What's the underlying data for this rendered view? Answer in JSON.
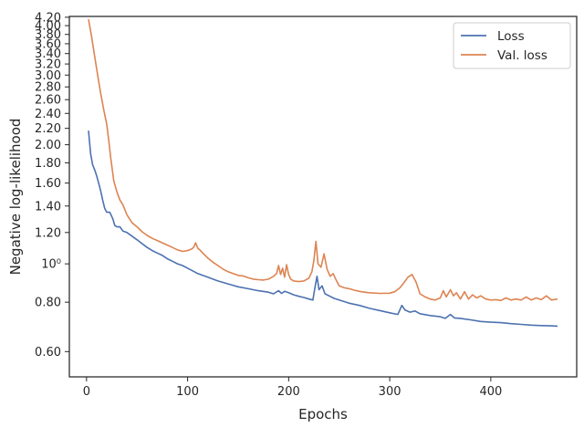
{
  "chart_data": {
    "type": "line",
    "xlabel": "Epochs",
    "ylabel": "Negative log-likelihood",
    "xlim": [
      -17,
      485
    ],
    "ylim": [
      0.518,
      4.22
    ],
    "yscale": "log",
    "grid": false,
    "legend_position": "top-right",
    "x_ticks": [
      {
        "value": 0,
        "label": "0"
      },
      {
        "value": 100,
        "label": "100"
      },
      {
        "value": 200,
        "label": "200"
      },
      {
        "value": 300,
        "label": "300"
      },
      {
        "value": 400,
        "label": "400"
      }
    ],
    "y_ticks": [
      {
        "value": 0.6,
        "label": "0.60"
      },
      {
        "value": 0.8,
        "label": "0.80"
      },
      {
        "value": 1.0,
        "label": "10⁰"
      },
      {
        "value": 1.2,
        "label": "1.20"
      },
      {
        "value": 1.4,
        "label": "1.40"
      },
      {
        "value": 1.6,
        "label": "1.60"
      },
      {
        "value": 1.8,
        "label": "1.80"
      },
      {
        "value": 2.0,
        "label": "2.00"
      },
      {
        "value": 2.2,
        "label": "2.20"
      },
      {
        "value": 2.4,
        "label": "2.40"
      },
      {
        "value": 2.6,
        "label": "2.60"
      },
      {
        "value": 2.8,
        "label": "2.80"
      },
      {
        "value": 3.0,
        "label": "3.00"
      },
      {
        "value": 3.2,
        "label": "3.20"
      },
      {
        "value": 3.4,
        "label": "3.40"
      },
      {
        "value": 3.6,
        "label": "3.60"
      },
      {
        "value": 3.8,
        "label": "3.80"
      },
      {
        "value": 4.0,
        "label": "4.00"
      },
      {
        "value": 4.2,
        "label": "4.20"
      }
    ],
    "series": [
      {
        "name": "Loss",
        "color": "#4c72b0",
        "points": [
          [
            2,
            2.17
          ],
          [
            4,
            1.9
          ],
          [
            6,
            1.78
          ],
          [
            8,
            1.73
          ],
          [
            10,
            1.67
          ],
          [
            12,
            1.6
          ],
          [
            14,
            1.53
          ],
          [
            16,
            1.45
          ],
          [
            18,
            1.38
          ],
          [
            20,
            1.35
          ],
          [
            23,
            1.35
          ],
          [
            26,
            1.3
          ],
          [
            28,
            1.25
          ],
          [
            30,
            1.24
          ],
          [
            33,
            1.24
          ],
          [
            36,
            1.21
          ],
          [
            40,
            1.2
          ],
          [
            45,
            1.175
          ],
          [
            50,
            1.15
          ],
          [
            55,
            1.125
          ],
          [
            60,
            1.1
          ],
          [
            65,
            1.08
          ],
          [
            70,
            1.065
          ],
          [
            75,
            1.05
          ],
          [
            80,
            1.03
          ],
          [
            85,
            1.015
          ],
          [
            90,
            1.0
          ],
          [
            95,
            0.99
          ],
          [
            100,
            0.975
          ],
          [
            105,
            0.96
          ],
          [
            110,
            0.945
          ],
          [
            120,
            0.925
          ],
          [
            130,
            0.905
          ],
          [
            140,
            0.89
          ],
          [
            150,
            0.875
          ],
          [
            160,
            0.865
          ],
          [
            170,
            0.855
          ],
          [
            180,
            0.848
          ],
          [
            185,
            0.84
          ],
          [
            190,
            0.855
          ],
          [
            193,
            0.842
          ],
          [
            196,
            0.852
          ],
          [
            200,
            0.845
          ],
          [
            205,
            0.835
          ],
          [
            210,
            0.828
          ],
          [
            215,
            0.822
          ],
          [
            220,
            0.815
          ],
          [
            224,
            0.81
          ],
          [
            226,
            0.87
          ],
          [
            228,
            0.93
          ],
          [
            230,
            0.86
          ],
          [
            233,
            0.88
          ],
          [
            236,
            0.84
          ],
          [
            240,
            0.83
          ],
          [
            245,
            0.818
          ],
          [
            250,
            0.81
          ],
          [
            260,
            0.795
          ],
          [
            270,
            0.785
          ],
          [
            280,
            0.772
          ],
          [
            290,
            0.762
          ],
          [
            300,
            0.752
          ],
          [
            308,
            0.745
          ],
          [
            312,
            0.785
          ],
          [
            315,
            0.765
          ],
          [
            320,
            0.755
          ],
          [
            325,
            0.76
          ],
          [
            330,
            0.748
          ],
          [
            340,
            0.74
          ],
          [
            350,
            0.735
          ],
          [
            355,
            0.728
          ],
          [
            360,
            0.745
          ],
          [
            364,
            0.73
          ],
          [
            370,
            0.728
          ],
          [
            380,
            0.722
          ],
          [
            390,
            0.715
          ],
          [
            400,
            0.712
          ],
          [
            410,
            0.71
          ],
          [
            420,
            0.706
          ],
          [
            430,
            0.703
          ],
          [
            440,
            0.7
          ],
          [
            450,
            0.698
          ],
          [
            460,
            0.697
          ],
          [
            466,
            0.696
          ]
        ]
      },
      {
        "name": "Val. loss",
        "color": "#dd8452",
        "points": [
          [
            2,
            4.15
          ],
          [
            5,
            3.75
          ],
          [
            8,
            3.35
          ],
          [
            11,
            3.0
          ],
          [
            14,
            2.7
          ],
          [
            17,
            2.45
          ],
          [
            20,
            2.25
          ],
          [
            22,
            2.05
          ],
          [
            24,
            1.85
          ],
          [
            27,
            1.62
          ],
          [
            30,
            1.52
          ],
          [
            33,
            1.45
          ],
          [
            36,
            1.41
          ],
          [
            40,
            1.33
          ],
          [
            45,
            1.27
          ],
          [
            50,
            1.24
          ],
          [
            55,
            1.205
          ],
          [
            60,
            1.18
          ],
          [
            65,
            1.16
          ],
          [
            70,
            1.145
          ],
          [
            75,
            1.13
          ],
          [
            80,
            1.115
          ],
          [
            85,
            1.1
          ],
          [
            90,
            1.085
          ],
          [
            95,
            1.075
          ],
          [
            100,
            1.08
          ],
          [
            104,
            1.09
          ],
          [
            106,
            1.1
          ],
          [
            108,
            1.13
          ],
          [
            110,
            1.095
          ],
          [
            112,
            1.085
          ],
          [
            115,
            1.065
          ],
          [
            120,
            1.035
          ],
          [
            125,
            1.01
          ],
          [
            130,
            0.99
          ],
          [
            135,
            0.97
          ],
          [
            140,
            0.955
          ],
          [
            145,
            0.945
          ],
          [
            150,
            0.935
          ],
          [
            155,
            0.932
          ],
          [
            160,
            0.922
          ],
          [
            165,
            0.915
          ],
          [
            170,
            0.912
          ],
          [
            175,
            0.91
          ],
          [
            180,
            0.915
          ],
          [
            185,
            0.93
          ],
          [
            188,
            0.945
          ],
          [
            190,
            0.99
          ],
          [
            192,
            0.94
          ],
          [
            194,
            0.975
          ],
          [
            196,
            0.925
          ],
          [
            198,
            0.995
          ],
          [
            200,
            0.94
          ],
          [
            202,
            0.915
          ],
          [
            205,
            0.905
          ],
          [
            210,
            0.902
          ],
          [
            215,
            0.905
          ],
          [
            220,
            0.92
          ],
          [
            223,
            0.955
          ],
          [
            225,
            1.02
          ],
          [
            227,
            1.14
          ],
          [
            229,
            1.0
          ],
          [
            232,
            0.98
          ],
          [
            235,
            1.06
          ],
          [
            238,
            0.97
          ],
          [
            241,
            0.93
          ],
          [
            244,
            0.945
          ],
          [
            247,
            0.91
          ],
          [
            250,
            0.88
          ],
          [
            255,
            0.87
          ],
          [
            260,
            0.865
          ],
          [
            265,
            0.858
          ],
          [
            270,
            0.852
          ],
          [
            275,
            0.848
          ],
          [
            280,
            0.845
          ],
          [
            290,
            0.842
          ],
          [
            300,
            0.843
          ],
          [
            305,
            0.85
          ],
          [
            310,
            0.87
          ],
          [
            314,
            0.895
          ],
          [
            318,
            0.925
          ],
          [
            322,
            0.94
          ],
          [
            326,
            0.9
          ],
          [
            330,
            0.84
          ],
          [
            335,
            0.825
          ],
          [
            340,
            0.815
          ],
          [
            345,
            0.81
          ],
          [
            350,
            0.82
          ],
          [
            353,
            0.855
          ],
          [
            356,
            0.825
          ],
          [
            360,
            0.86
          ],
          [
            363,
            0.83
          ],
          [
            366,
            0.845
          ],
          [
            370,
            0.815
          ],
          [
            374,
            0.85
          ],
          [
            378,
            0.815
          ],
          [
            382,
            0.835
          ],
          [
            386,
            0.82
          ],
          [
            390,
            0.83
          ],
          [
            395,
            0.815
          ],
          [
            400,
            0.81
          ],
          [
            405,
            0.812
          ],
          [
            410,
            0.808
          ],
          [
            415,
            0.82
          ],
          [
            420,
            0.81
          ],
          [
            425,
            0.815
          ],
          [
            430,
            0.81
          ],
          [
            435,
            0.825
          ],
          [
            440,
            0.81
          ],
          [
            445,
            0.82
          ],
          [
            450,
            0.812
          ],
          [
            455,
            0.83
          ],
          [
            460,
            0.81
          ],
          [
            466,
            0.815
          ]
        ]
      }
    ]
  }
}
